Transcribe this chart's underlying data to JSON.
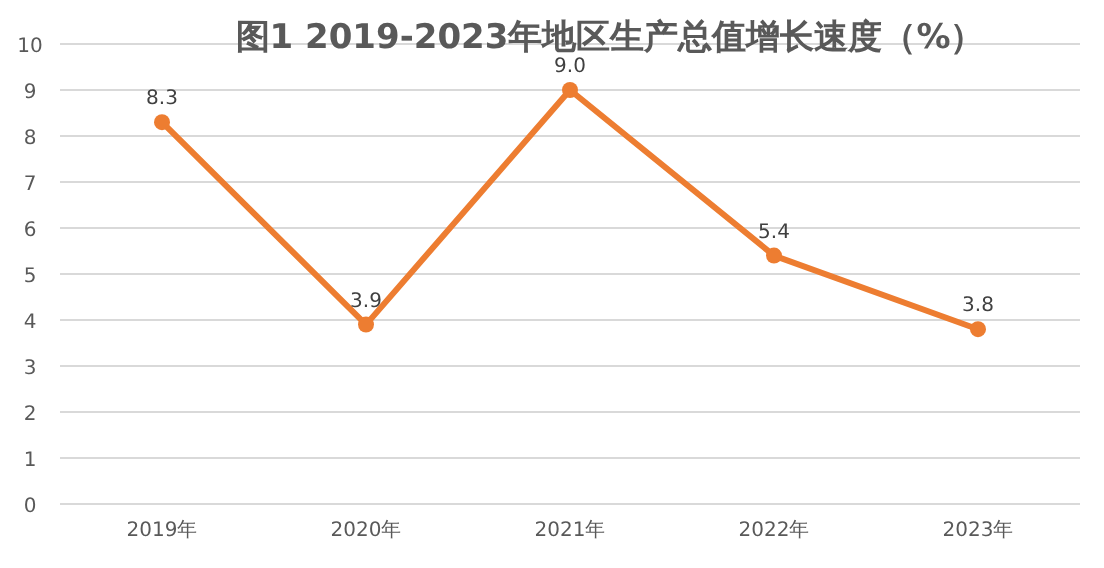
{
  "chart_data": {
    "type": "line",
    "title": "图1  2019-2023年地区生产总值增长速度（%）",
    "categories": [
      "2019年",
      "2020年",
      "2021年",
      "2022年",
      "2023年"
    ],
    "series": [
      {
        "color": "#ed7d31",
        "values": [
          8.3,
          3.9,
          9.0,
          5.4,
          3.8
        ],
        "value_labels": [
          "8.3",
          "3.9",
          "9.0",
          "5.4",
          "3.8"
        ]
      }
    ],
    "ylim": [
      0,
      10
    ],
    "yticks": [
      0,
      1,
      2,
      3,
      4,
      5,
      6,
      7,
      8,
      9,
      10
    ],
    "grid": "y",
    "marker": "circle",
    "line_style": "solid"
  }
}
